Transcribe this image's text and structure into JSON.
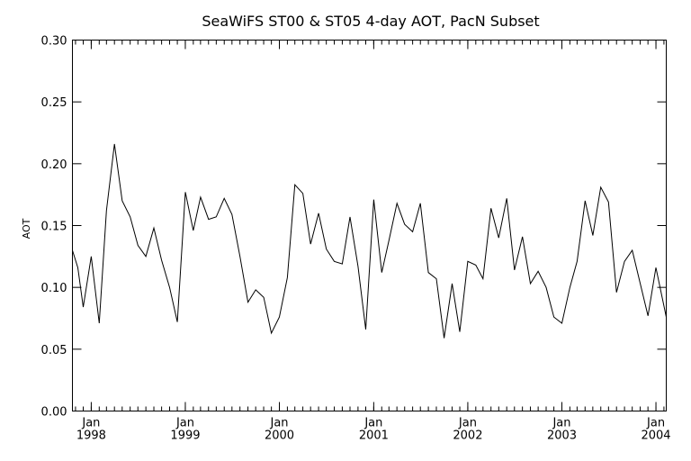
{
  "chart_data": {
    "type": "line",
    "title": "SeaWiFS ST00 & ST05 4-day AOT, PacN Subset",
    "xlabel": "",
    "ylabel": "AOT",
    "x_range": [
      "1997-10-20",
      "2004-02-10"
    ],
    "ylim": [
      0.0,
      0.3
    ],
    "y_ticks": [
      "0.00",
      "0.05",
      "0.10",
      "0.15",
      "0.20",
      "0.25",
      "0.30"
    ],
    "x_ticks": [
      {
        "date": "1998-01-01",
        "month": "Jan",
        "year": "1998"
      },
      {
        "date": "1999-01-01",
        "month": "Jan",
        "year": "1999"
      },
      {
        "date": "2000-01-01",
        "month": "Jan",
        "year": "2000"
      },
      {
        "date": "2001-01-01",
        "month": "Jan",
        "year": "2001"
      },
      {
        "date": "2002-01-01",
        "month": "Jan",
        "year": "2002"
      },
      {
        "date": "2003-01-01",
        "month": "Jan",
        "year": "2003"
      },
      {
        "date": "2004-01-01",
        "month": "Jan",
        "year": "2004"
      }
    ],
    "grid": false,
    "series": [
      {
        "x": [
          "1997-10-20",
          "1997-11-10",
          "1997-12-01",
          "1998-01-01",
          "1998-02-01",
          "1998-03-01",
          "1998-04-01",
          "1998-05-01",
          "1998-06-01",
          "1998-07-01",
          "1998-08-01",
          "1998-09-01",
          "1998-10-01",
          "1998-11-01",
          "1998-12-01",
          "1999-01-01",
          "1999-02-01",
          "1999-03-01",
          "1999-04-01",
          "1999-05-01",
          "1999-06-01",
          "1999-07-01",
          "1999-08-01",
          "1999-09-01",
          "1999-10-01",
          "1999-11-01",
          "1999-12-01",
          "2000-01-01",
          "2000-02-01",
          "2000-03-01",
          "2000-04-01",
          "2000-05-01",
          "2000-06-01",
          "2000-07-01",
          "2000-08-01",
          "2000-09-01",
          "2000-10-01",
          "2000-11-01",
          "2000-12-01",
          "2001-01-01",
          "2001-02-01",
          "2001-03-01",
          "2001-04-01",
          "2001-05-01",
          "2001-06-01",
          "2001-07-01",
          "2001-08-01",
          "2001-09-01",
          "2001-10-01",
          "2001-11-01",
          "2001-12-01",
          "2002-01-01",
          "2002-02-01",
          "2002-03-01",
          "2002-04-01",
          "2002-05-01",
          "2002-06-01",
          "2002-07-01",
          "2002-08-01",
          "2002-09-01",
          "2002-10-01",
          "2002-11-01",
          "2002-12-01",
          "2003-01-01",
          "2003-02-01",
          "2003-03-01",
          "2003-04-01",
          "2003-05-01",
          "2003-06-01",
          "2003-07-01",
          "2003-08-01",
          "2003-09-01",
          "2003-10-01",
          "2003-11-01",
          "2003-12-01",
          "2004-01-01",
          "2004-02-10"
        ],
        "y": [
          0.13,
          0.116,
          0.084,
          0.125,
          0.071,
          0.162,
          0.216,
          0.17,
          0.157,
          0.134,
          0.125,
          0.148,
          0.122,
          0.1,
          0.072,
          0.177,
          0.146,
          0.173,
          0.155,
          0.157,
          0.172,
          0.159,
          0.125,
          0.088,
          0.098,
          0.092,
          0.063,
          0.076,
          0.108,
          0.183,
          0.176,
          0.135,
          0.16,
          0.131,
          0.121,
          0.119,
          0.157,
          0.117,
          0.066,
          0.171,
          0.112,
          0.138,
          0.168,
          0.151,
          0.145,
          0.168,
          0.112,
          0.107,
          0.059,
          0.103,
          0.064,
          0.121,
          0.118,
          0.107,
          0.164,
          0.14,
          0.172,
          0.114,
          0.141,
          0.103,
          0.113,
          0.1,
          0.076,
          0.071,
          0.1,
          0.121,
          0.17,
          0.142,
          0.181,
          0.169,
          0.096,
          0.121,
          0.13,
          0.103,
          0.077,
          0.116,
          0.076
        ]
      }
    ]
  }
}
